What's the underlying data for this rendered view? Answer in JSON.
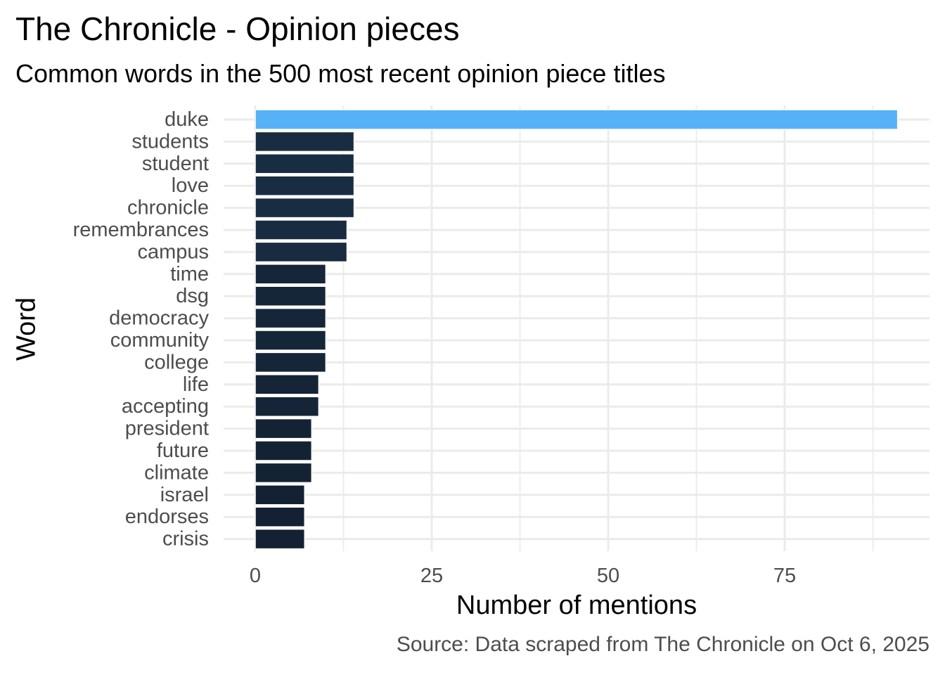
{
  "chart_data": {
    "type": "bar",
    "orientation": "horizontal",
    "title": "The Chronicle - Opinion pieces",
    "subtitle": "Common words in the 500 most recent opinion piece titles",
    "caption": "Source: Data scraped from The Chronicle on Oct 6, 2025",
    "xlabel": "Number of mentions",
    "ylabel": "Word",
    "categories": [
      "duke",
      "students",
      "student",
      "love",
      "chronicle",
      "remembrances",
      "campus",
      "time",
      "dsg",
      "democracy",
      "community",
      "college",
      "life",
      "accepting",
      "president",
      "future",
      "climate",
      "israel",
      "endorses",
      "crisis"
    ],
    "values": [
      91,
      14,
      14,
      14,
      14,
      13,
      13,
      10,
      10,
      10,
      10,
      10,
      9,
      9,
      8,
      8,
      8,
      7,
      7,
      7
    ],
    "xlim": [
      -4.6,
      95.6
    ],
    "xticks": [
      0,
      25,
      50,
      75
    ],
    "xtick_labels": [
      "0",
      "25",
      "50",
      "75"
    ],
    "grid": true,
    "legend": "none",
    "colors": {
      "low": "#132132",
      "high": "#56B1F7",
      "grid": "#ebebeb"
    }
  }
}
